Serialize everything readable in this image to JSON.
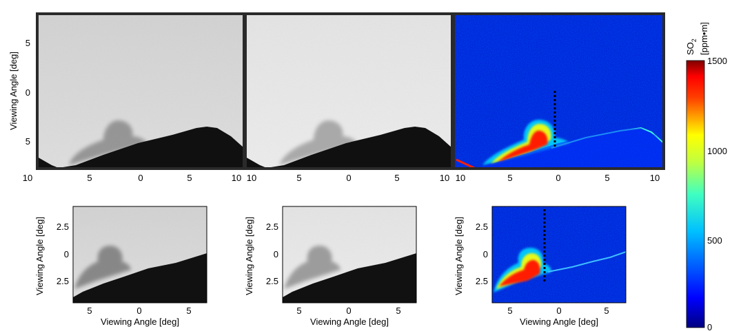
{
  "top_row": {
    "y_axis_label": "Viewing Angle [deg]",
    "y_ticks": [
      "5",
      "0",
      "5"
    ],
    "x_ticks": [
      "10",
      "5",
      "0",
      "5",
      "10"
    ],
    "panels": [
      {
        "kind": "grayscale-image",
        "label": ""
      },
      {
        "kind": "grayscale-image",
        "label": ""
      },
      {
        "kind": "so2-colormap-image",
        "label": ""
      }
    ]
  },
  "bottom_row": {
    "x_axis_label": "Viewing Angle [deg]",
    "y_axis_label": "Viewing Angle [deg]",
    "panels": [
      {
        "kind": "grayscale-image",
        "y_ticks": [
          "2.5",
          "0",
          "2.5"
        ],
        "x_ticks": [
          "5",
          "0",
          "5"
        ]
      },
      {
        "kind": "grayscale-image",
        "y_ticks": [
          "2.5",
          "0",
          "2.5"
        ],
        "x_ticks": [
          "5",
          "0",
          "5"
        ]
      },
      {
        "kind": "so2-colormap-image",
        "y_ticks": [
          "2.5",
          "0",
          "2.5"
        ],
        "x_ticks": [
          "5",
          "0",
          "5"
        ]
      }
    ]
  },
  "colorbar": {
    "title_main": "SO",
    "title_sub": "2",
    "units": "[ppm•m]",
    "ticks": [
      "1500",
      "1000",
      "500",
      "0"
    ],
    "colors": [
      "#00007f",
      "#0000ff",
      "#0080ff",
      "#00ffff",
      "#80ff80",
      "#ffff00",
      "#ff8000",
      "#ff0000",
      "#7f0000"
    ]
  }
}
